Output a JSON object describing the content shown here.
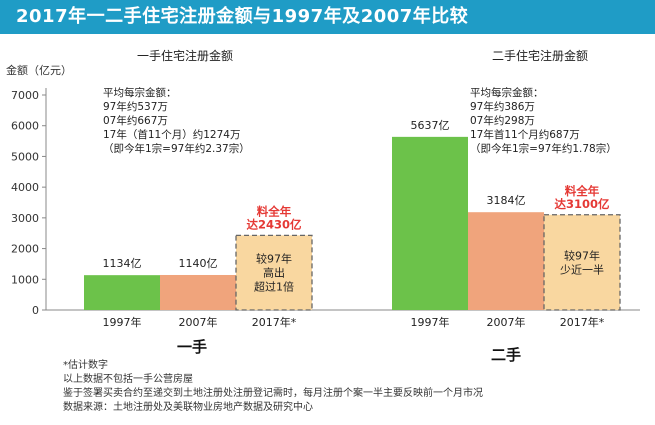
{
  "title": "2017年一二手住宅注册金额与1997年及2007年比较",
  "ylabel": "金额（亿元）",
  "colors": {
    "y1997": "#6cc24a",
    "y2007": "#f0a47c",
    "y2017": "#f9d7a0",
    "note": "#e53935",
    "title_bg": "#1f9cc6"
  },
  "chart_data": [
    {
      "type": "bar",
      "title": "一手住宅注册金额",
      "group_label": "一手",
      "categories": [
        "1997年",
        "2007年",
        "2017年*"
      ],
      "values": [
        1134,
        1140,
        2430
      ],
      "value_labels": [
        "1134亿",
        "1140亿",
        ""
      ],
      "forecast_note": [
        "料全年",
        "达2430亿"
      ],
      "forecast_box_text": [
        "较97年",
        "高出",
        "超过1倍"
      ],
      "annotation": [
        "平均每宗金额：",
        "97年约537万",
        "07年约667万",
        "17年（首11个月）约1274万",
        "（即今年1宗=97年约2.37宗）"
      ],
      "ylim": [
        0,
        7000
      ]
    },
    {
      "type": "bar",
      "title": "二手住宅注册金额",
      "group_label": "二手",
      "categories": [
        "1997年",
        "2007年",
        "2017年*"
      ],
      "values": [
        5637,
        3184,
        3100
      ],
      "value_labels": [
        "5637亿",
        "3184亿",
        ""
      ],
      "forecast_note": [
        "料全年",
        "达3100亿"
      ],
      "forecast_box_text": [
        "较97年",
        "少近一半"
      ],
      "annotation": [
        "平均每宗金额：",
        "97年约386万",
        "07年约298万",
        "17年首11个月约687万",
        "（即今年1宗=97年约1.78宗）"
      ],
      "ylim": [
        0,
        7000
      ]
    }
  ],
  "yticks": [
    0,
    1000,
    2000,
    3000,
    4000,
    5000,
    6000,
    7000
  ],
  "footnotes": [
    "*估计数字",
    "以上数据不包括一手公营房屋",
    "鉴于签署买卖合约至递交到土地注册处注册登记需时，每月注册个案一半主要反映前一个月市况",
    "数据来源：土地注册处及美联物业房地产数据及研究中心"
  ]
}
